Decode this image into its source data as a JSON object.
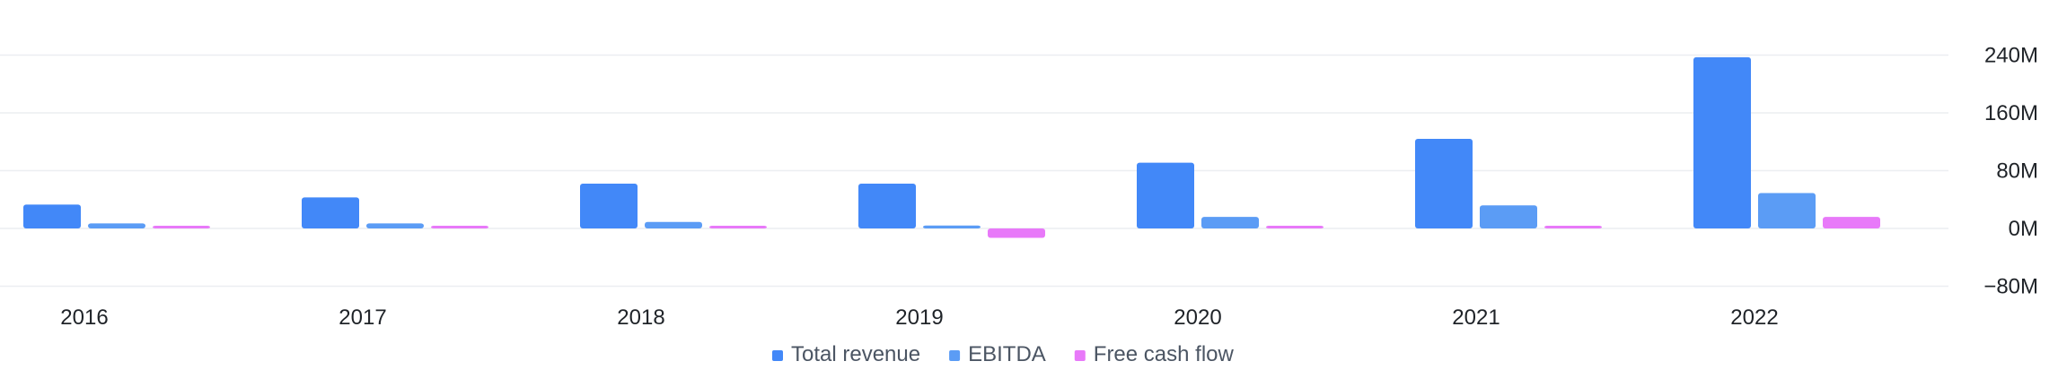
{
  "chart_data": {
    "type": "bar",
    "title": "",
    "xlabel": "",
    "ylabel": "",
    "categories": [
      "2016",
      "2017",
      "2018",
      "2019",
      "2020",
      "2021",
      "2022"
    ],
    "series": [
      {
        "name": "Total revenue",
        "color": "#4288f8",
        "values": [
          33,
          43,
          62,
          62,
          91,
          124,
          237
        ]
      },
      {
        "name": "EBITDA",
        "color": "#5b9cf5",
        "values": [
          7,
          7,
          9,
          4,
          16,
          32,
          49
        ]
      },
      {
        "name": "Free cash flow",
        "color": "#e879f9",
        "values": [
          2,
          2,
          2,
          -13,
          3,
          3,
          16
        ]
      }
    ],
    "y_ticks": [
      -80,
      0,
      80,
      160,
      240
    ],
    "y_tick_labels": [
      "−80M",
      "0M",
      "80M",
      "160M",
      "240M"
    ],
    "ylim": [
      -80,
      240
    ],
    "grid": true,
    "legend_position": "bottom-center",
    "axis_position": "right"
  }
}
